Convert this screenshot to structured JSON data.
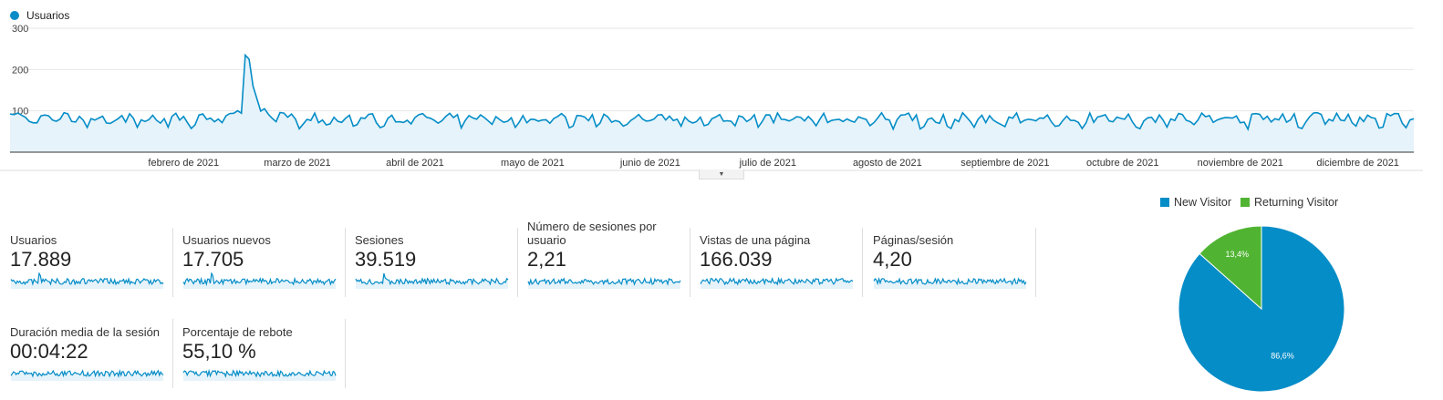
{
  "legend": {
    "series_label": "Usuarios",
    "color": "#058dc7"
  },
  "chart_data": [
    {
      "type": "area",
      "title": "",
      "series": [
        {
          "name": "Usuarios"
        }
      ],
      "y_ticks": [
        "100",
        "200",
        "300"
      ],
      "ylim": [
        0,
        300
      ],
      "x_ticks": [
        "febrero de 2021",
        "marzo de 2021",
        "abril de 2021",
        "mayo de 2021",
        "junio de 2021",
        "julio de 2021",
        "agosto de 2021",
        "septiembre de 2021",
        "octubre de 2021",
        "noviembre de 2021",
        "diciembre de 2021"
      ],
      "x_range": [
        "2021-01-01",
        "2021-12-31"
      ],
      "daily_baseline": 80,
      "peaks": [
        {
          "x": "2021-03-03",
          "y": 235
        },
        {
          "x": "2021-03-04",
          "y": 225
        },
        {
          "x": "2021-03-05",
          "y": 160
        },
        {
          "x": "2021-03-06",
          "y": 130
        }
      ],
      "grid": true
    },
    {
      "type": "pie",
      "legend_position": "top",
      "slices": [
        {
          "name": "New Visitor",
          "value": 86.6,
          "label": "86,6%",
          "color": "#058dc7"
        },
        {
          "name": "Returning Visitor",
          "value": 13.4,
          "label": "13,4%",
          "color": "#50b432"
        }
      ]
    }
  ],
  "metrics": [
    {
      "label": "Usuarios",
      "value": "17.889"
    },
    {
      "label": "Usuarios nuevos",
      "value": "17.705"
    },
    {
      "label": "Sesiones",
      "value": "39.519"
    },
    {
      "label": "Número de sesiones por usuario",
      "value": "2,21"
    },
    {
      "label": "Vistas de una página",
      "value": "166.039"
    },
    {
      "label": "Páginas/sesión",
      "value": "4,20"
    },
    {
      "label": "Duración media de la sesión",
      "value": "00:04:22"
    },
    {
      "label": "Porcentaje de rebote",
      "value": "55,10 %"
    }
  ],
  "pie_legend": [
    "New Visitor",
    "Returning Visitor"
  ]
}
